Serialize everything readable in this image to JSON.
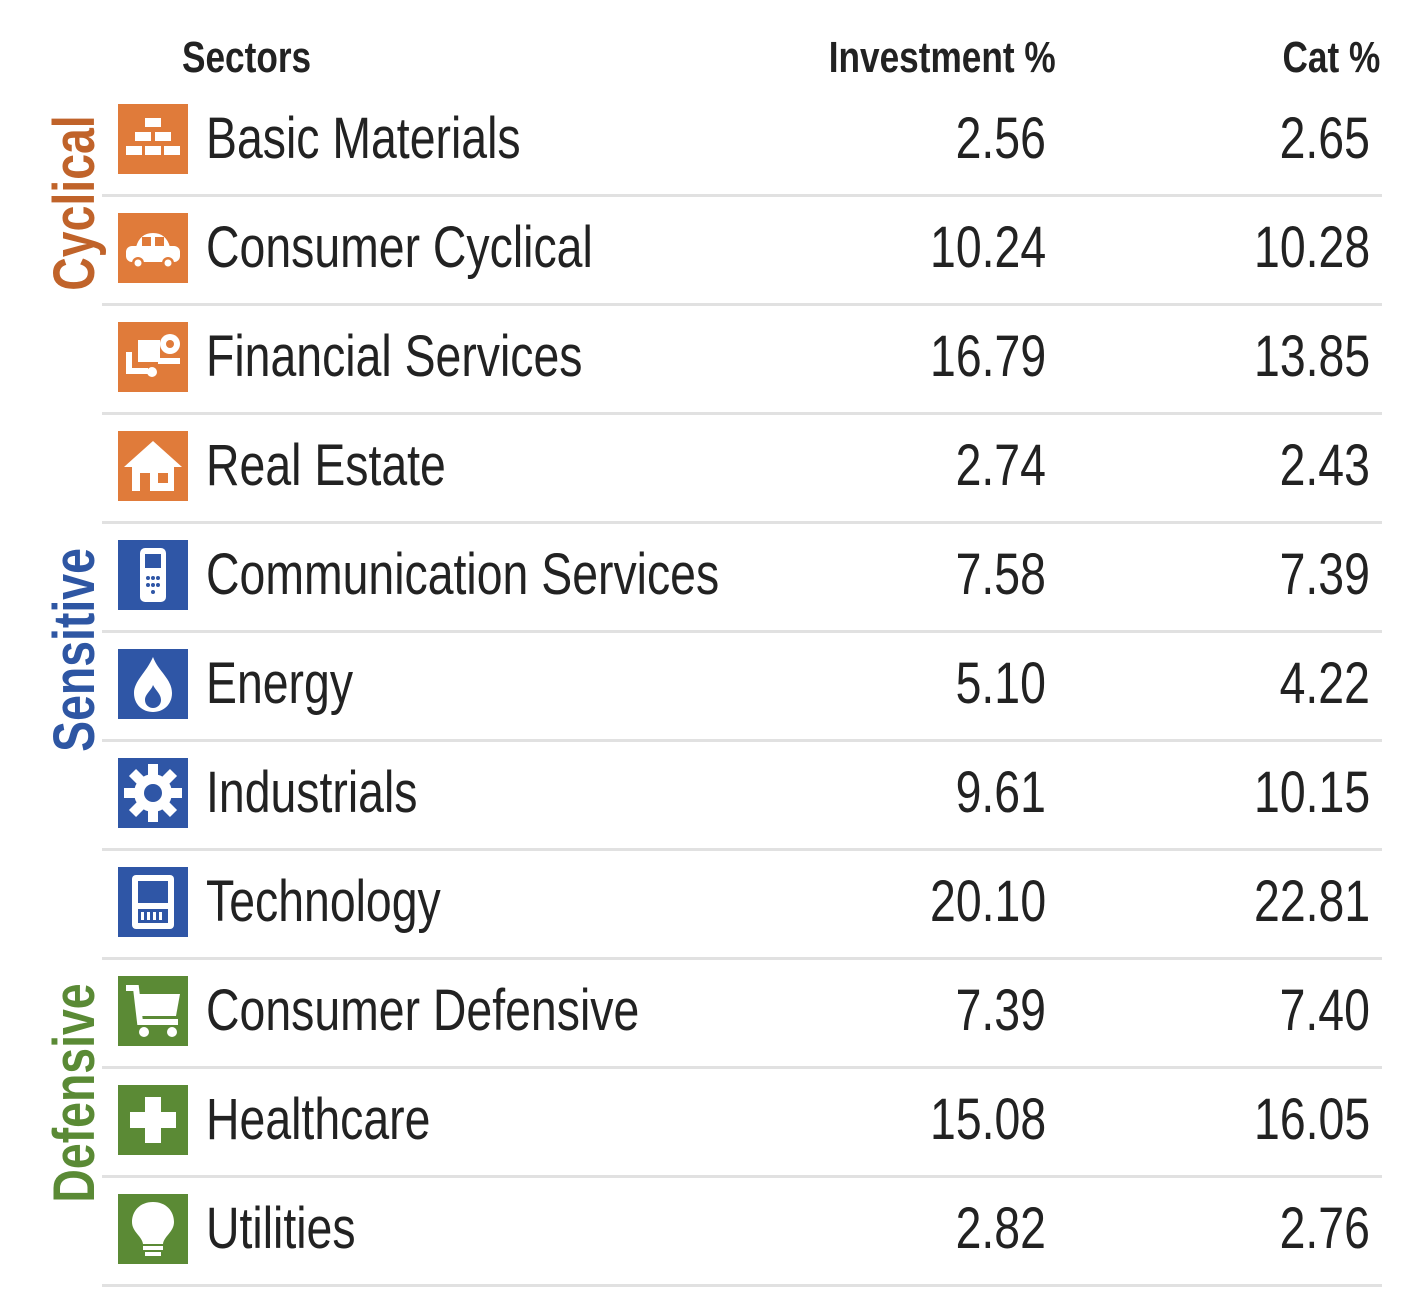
{
  "header": {
    "sectors": "Sectors",
    "investment": "Investment %",
    "cat": "Cat %"
  },
  "groups": {
    "cyclical": {
      "label": "Cyclical",
      "color": "#c0632a"
    },
    "sensitive": {
      "label": "Sensitive",
      "color": "#2e56a3"
    },
    "defensive": {
      "label": "Defensive",
      "color": "#5a8a35"
    }
  },
  "icon_colors": {
    "cyclical": "#e07b3a",
    "sensitive": "#2f56a6",
    "defensive": "#5b8a35"
  },
  "rows": [
    {
      "name": "Basic Materials",
      "investment": "2.56",
      "cat": "2.65",
      "icon": "gold-bars-icon",
      "group": "cyclical"
    },
    {
      "name": "Consumer Cyclical",
      "investment": "10.24",
      "cat": "10.28",
      "icon": "car-icon",
      "group": "cyclical"
    },
    {
      "name": "Financial Services",
      "investment": "16.79",
      "cat": "13.85",
      "icon": "dolly-icon",
      "group": "cyclical"
    },
    {
      "name": "Real Estate",
      "investment": "2.74",
      "cat": "2.43",
      "icon": "house-icon",
      "group": "cyclical"
    },
    {
      "name": "Communication Services",
      "investment": "7.58",
      "cat": "7.39",
      "icon": "phone-icon",
      "group": "sensitive"
    },
    {
      "name": "Energy",
      "investment": "5.10",
      "cat": "4.22",
      "icon": "flame-icon",
      "group": "sensitive"
    },
    {
      "name": "Industrials",
      "investment": "9.61",
      "cat": "10.15",
      "icon": "gear-icon",
      "group": "sensitive"
    },
    {
      "name": "Technology",
      "investment": "20.10",
      "cat": "22.81",
      "icon": "computer-icon",
      "group": "sensitive"
    },
    {
      "name": "Consumer Defensive",
      "investment": "7.39",
      "cat": "7.40",
      "icon": "cart-icon",
      "group": "defensive"
    },
    {
      "name": "Healthcare",
      "investment": "15.08",
      "cat": "16.05",
      "icon": "medical-cross-icon",
      "group": "defensive"
    },
    {
      "name": "Utilities",
      "investment": "2.82",
      "cat": "2.76",
      "icon": "lightbulb-icon",
      "group": "defensive"
    }
  ]
}
